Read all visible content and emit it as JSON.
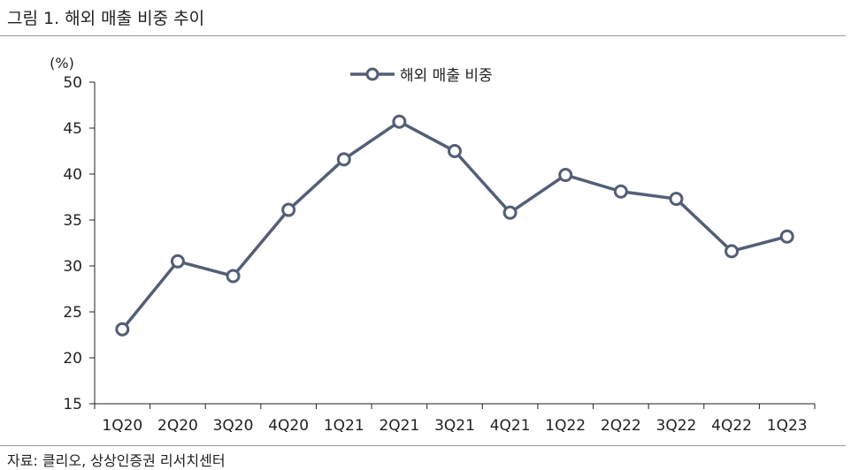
{
  "title": "그림 1. 해외 매출 비중 추이",
  "source": "자료: 클리오, 상상인증권 리서치센터",
  "colors": {
    "line": "#525f76",
    "marker_fill": "#ffffff"
  },
  "chart_data": {
    "type": "line",
    "title": "그림 1. 해외 매출 비중 추이",
    "ylabel": "(%)",
    "xlabel": "",
    "ylim": [
      15,
      50
    ],
    "yticks": [
      15,
      20,
      25,
      30,
      35,
      40,
      45,
      50
    ],
    "categories": [
      "1Q20",
      "2Q20",
      "3Q20",
      "4Q20",
      "1Q21",
      "2Q21",
      "3Q21",
      "4Q21",
      "1Q22",
      "2Q22",
      "3Q22",
      "4Q22",
      "1Q23"
    ],
    "series": [
      {
        "name": "해외 매출 비중",
        "values": [
          23.1,
          30.5,
          28.9,
          36.1,
          41.6,
          45.7,
          42.5,
          35.8,
          39.9,
          38.1,
          37.3,
          31.6,
          33.2
        ]
      }
    ],
    "legend": "top-center",
    "grid": false
  }
}
